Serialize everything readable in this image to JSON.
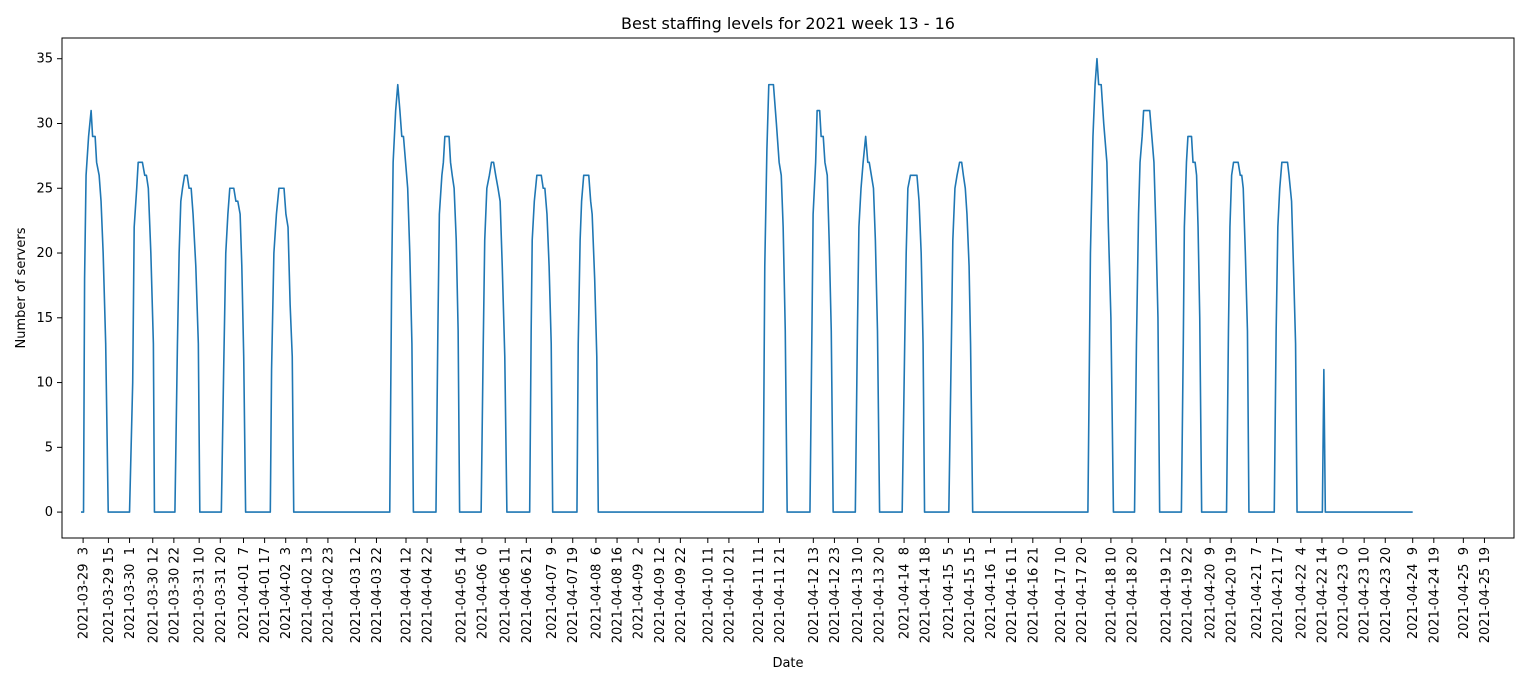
{
  "chart_data": {
    "type": "line",
    "title": "Best staffing levels for 2021 week 13 - 16",
    "xlabel": "Date",
    "ylabel": "Number of servers",
    "ylim": [
      -2,
      36.6
    ],
    "yticks": [
      0,
      5,
      10,
      15,
      20,
      25,
      30,
      35
    ],
    "grid": false,
    "line_color": "#1f77b4",
    "x_unit": "hour",
    "x_start": "2021-03-29 2",
    "x_end": "2021-04-25 23",
    "xlim_hours": [
      -9,
      679
    ],
    "xtick_labels": [
      "2021-03-29  3",
      "2021-03-29 15",
      "2021-03-30  1",
      "2021-03-30 12",
      "2021-03-30 22",
      "2021-03-31 10",
      "2021-03-31 20",
      "2021-04-01  7",
      "2021-04-01 17",
      "2021-04-02  3",
      "2021-04-02 13",
      "2021-04-02 23",
      "2021-04-03 12",
      "2021-04-03 22",
      "2021-04-04 12",
      "2021-04-04 22",
      "2021-04-05 14",
      "2021-04-06  0",
      "2021-04-06 11",
      "2021-04-06 21",
      "2021-04-07  9",
      "2021-04-07 19",
      "2021-04-08  6",
      "2021-04-08 16",
      "2021-04-09  2",
      "2021-04-09 12",
      "2021-04-09 22",
      "2021-04-10 11",
      "2021-04-10 21",
      "2021-04-11 11",
      "2021-04-11 21",
      "2021-04-12 13",
      "2021-04-12 23",
      "2021-04-13 10",
      "2021-04-13 20",
      "2021-04-14  8",
      "2021-04-14 18",
      "2021-04-15  5",
      "2021-04-15 15",
      "2021-04-16  1",
      "2021-04-16 11",
      "2021-04-16 21",
      "2021-04-17 10",
      "2021-04-17 20",
      "2021-04-18 10",
      "2021-04-18 20",
      "2021-04-19 12",
      "2021-04-19 22",
      "2021-04-20  9",
      "2021-04-20 19",
      "2021-04-21  7",
      "2021-04-21 17",
      "2021-04-22  4",
      "2021-04-22 14",
      "2021-04-23  0",
      "2021-04-23 10",
      "2021-04-23 20",
      "2021-04-24  9",
      "2021-04-24 19",
      "2021-04-25  9",
      "2021-04-25 19"
    ],
    "series": [
      {
        "name": "",
        "points": [
          [
            0,
            0
          ],
          [
            1.2,
            0
          ],
          [
            1.7,
            18
          ],
          [
            2.4,
            26
          ],
          [
            3.6,
            29
          ],
          [
            4.8,
            31
          ],
          [
            5.5,
            29
          ],
          [
            6.7,
            29
          ],
          [
            7.4,
            27
          ],
          [
            8.6,
            26
          ],
          [
            9.5,
            24
          ],
          [
            10.5,
            20
          ],
          [
            11.7,
            13
          ],
          [
            12.9,
            0
          ],
          [
            23,
            0
          ],
          [
            24.5,
            10
          ],
          [
            25.2,
            22
          ],
          [
            26.4,
            25
          ],
          [
            27.1,
            27
          ],
          [
            29.1,
            27
          ],
          [
            30.2,
            26
          ],
          [
            31,
            26
          ],
          [
            31.9,
            25
          ],
          [
            33.1,
            20
          ],
          [
            34.3,
            13
          ],
          [
            34.8,
            0
          ],
          [
            44.5,
            0
          ],
          [
            45.7,
            13
          ],
          [
            46.5,
            20
          ],
          [
            47.3,
            24
          ],
          [
            48.1,
            25
          ],
          [
            49.1,
            26
          ],
          [
            50.3,
            26
          ],
          [
            51.2,
            25
          ],
          [
            52.2,
            25
          ],
          [
            53.1,
            23
          ],
          [
            54.4,
            19
          ],
          [
            55.6,
            13
          ],
          [
            56.3,
            0
          ],
          [
            66.5,
            0
          ],
          [
            67.6,
            11
          ],
          [
            68.6,
            20
          ],
          [
            69.6,
            23
          ],
          [
            70.5,
            25
          ],
          [
            72.4,
            25
          ],
          [
            73.4,
            24
          ],
          [
            74.3,
            24
          ],
          [
            75.4,
            23
          ],
          [
            76.2,
            19
          ],
          [
            77.1,
            12
          ],
          [
            78,
            0
          ],
          [
            89.7,
            0
          ],
          [
            90.3,
            11
          ],
          [
            91.4,
            20
          ],
          [
            92.6,
            23
          ],
          [
            93.8,
            25
          ],
          [
            96.2,
            25
          ],
          [
            97.1,
            23
          ],
          [
            98.1,
            22
          ],
          [
            99.1,
            16
          ],
          [
            100.1,
            12
          ],
          [
            100.8,
            0
          ],
          [
            146.3,
            0
          ],
          [
            147.2,
            18
          ],
          [
            147.9,
            27
          ],
          [
            149.1,
            31
          ],
          [
            150.1,
            33
          ],
          [
            151.1,
            31
          ],
          [
            152,
            29
          ],
          [
            152.8,
            29
          ],
          [
            153.8,
            27
          ],
          [
            154.8,
            25
          ],
          [
            155.8,
            20
          ],
          [
            156.8,
            13
          ],
          [
            157.5,
            0
          ],
          [
            168.2,
            0
          ],
          [
            169.1,
            14
          ],
          [
            169.8,
            23
          ],
          [
            171,
            26
          ],
          [
            171.7,
            27
          ],
          [
            172.4,
            29
          ],
          [
            174.4,
            29
          ],
          [
            175.1,
            27
          ],
          [
            175.9,
            26
          ],
          [
            176.8,
            25
          ],
          [
            177.8,
            21
          ],
          [
            178.7,
            14
          ],
          [
            179.4,
            0
          ],
          [
            189.6,
            0
          ],
          [
            190.6,
            13
          ],
          [
            191.3,
            21
          ],
          [
            192.3,
            25
          ],
          [
            193.5,
            26
          ],
          [
            194.5,
            27
          ],
          [
            195.5,
            27
          ],
          [
            196.5,
            26
          ],
          [
            197.6,
            25
          ],
          [
            198.6,
            24
          ],
          [
            199.6,
            19
          ],
          [
            200.8,
            12
          ],
          [
            201.8,
            0
          ],
          [
            212.6,
            0
          ],
          [
            213.3,
            14
          ],
          [
            213.8,
            21
          ],
          [
            214.8,
            24
          ],
          [
            216,
            26
          ],
          [
            218.1,
            26
          ],
          [
            219,
            25
          ],
          [
            219.8,
            25
          ],
          [
            220.8,
            23
          ],
          [
            221.8,
            19
          ],
          [
            222.8,
            13
          ],
          [
            223.5,
            0
          ],
          [
            235,
            0
          ],
          [
            235.6,
            13
          ],
          [
            236.5,
            21
          ],
          [
            237.2,
            24
          ],
          [
            238.2,
            26
          ],
          [
            240.6,
            26
          ],
          [
            241.5,
            24
          ],
          [
            242.2,
            23
          ],
          [
            243.4,
            18
          ],
          [
            244.4,
            12
          ],
          [
            245.1,
            0
          ],
          [
            323.2,
            0
          ],
          [
            324,
            19
          ],
          [
            325,
            28
          ],
          [
            325.9,
            33
          ],
          [
            328.1,
            33
          ],
          [
            329.5,
            30
          ],
          [
            330.8,
            27
          ],
          [
            331.8,
            26
          ],
          [
            332.7,
            22
          ],
          [
            333.7,
            14
          ],
          [
            334.6,
            0
          ],
          [
            345.4,
            0
          ],
          [
            346.4,
            15
          ],
          [
            346.9,
            23
          ],
          [
            348.1,
            27
          ],
          [
            348.8,
            31
          ],
          [
            350,
            31
          ],
          [
            350.7,
            29
          ],
          [
            351.7,
            29
          ],
          [
            352.5,
            27
          ],
          [
            353.6,
            26
          ],
          [
            354.5,
            21
          ],
          [
            355.5,
            14
          ],
          [
            356.4,
            0
          ],
          [
            366.9,
            0
          ],
          [
            367.9,
            14
          ],
          [
            368.6,
            22
          ],
          [
            369.6,
            25
          ],
          [
            370.6,
            27
          ],
          [
            371.8,
            29
          ],
          [
            372.8,
            27
          ],
          [
            373.5,
            27
          ],
          [
            374.5,
            26
          ],
          [
            375.5,
            25
          ],
          [
            376.4,
            21
          ],
          [
            377.4,
            14
          ],
          [
            378.4,
            0
          ],
          [
            389.1,
            0
          ],
          [
            390.3,
            13
          ],
          [
            391,
            20
          ],
          [
            391.8,
            25
          ],
          [
            393,
            26
          ],
          [
            396.1,
            26
          ],
          [
            397.1,
            24
          ],
          [
            398.1,
            20
          ],
          [
            399,
            13
          ],
          [
            399.7,
            0
          ],
          [
            411.2,
            0
          ],
          [
            412.4,
            13
          ],
          [
            413.1,
            21
          ],
          [
            414.1,
            25
          ],
          [
            415.1,
            26
          ],
          [
            416.3,
            27
          ],
          [
            417.3,
            27
          ],
          [
            418.1,
            26
          ],
          [
            419,
            25
          ],
          [
            419.8,
            23
          ],
          [
            420.8,
            19
          ],
          [
            421.5,
            13
          ],
          [
            422.5,
            0
          ],
          [
            477.1,
            0
          ],
          [
            478.3,
            20
          ],
          [
            479.5,
            29
          ],
          [
            480.5,
            33
          ],
          [
            481.4,
            35
          ],
          [
            482.2,
            33
          ],
          [
            483.4,
            33
          ],
          [
            484.6,
            30
          ],
          [
            486.1,
            27
          ],
          [
            486.8,
            22
          ],
          [
            488,
            15
          ],
          [
            489.2,
            0
          ],
          [
            499.2,
            0
          ],
          [
            500.1,
            13
          ],
          [
            501.1,
            23
          ],
          [
            501.8,
            27
          ],
          [
            502.8,
            29
          ],
          [
            503.5,
            31
          ],
          [
            506.4,
            31
          ],
          [
            507.4,
            29
          ],
          [
            508.4,
            27
          ],
          [
            509.3,
            22
          ],
          [
            510.3,
            15
          ],
          [
            511.1,
            0
          ],
          [
            521.4,
            0
          ],
          [
            522.3,
            13
          ],
          [
            522.8,
            22
          ],
          [
            523.8,
            27
          ],
          [
            524.5,
            29
          ],
          [
            526.2,
            29
          ],
          [
            526.9,
            27
          ],
          [
            527.9,
            27
          ],
          [
            528.6,
            26
          ],
          [
            529.3,
            22
          ],
          [
            530.1,
            15
          ],
          [
            531,
            0
          ],
          [
            542.8,
            0
          ],
          [
            543.7,
            14
          ],
          [
            544.4,
            22
          ],
          [
            545.2,
            26
          ],
          [
            546.1,
            27
          ],
          [
            548.3,
            27
          ],
          [
            549.3,
            26
          ],
          [
            550,
            26
          ],
          [
            550.7,
            25
          ],
          [
            551.7,
            20
          ],
          [
            552.7,
            14
          ],
          [
            553.4,
            0
          ],
          [
            565.4,
            0
          ],
          [
            566.3,
            14
          ],
          [
            567.1,
            22
          ],
          [
            568,
            25
          ],
          [
            569,
            27
          ],
          [
            571.7,
            27
          ],
          [
            572.4,
            26
          ],
          [
            573.6,
            24
          ],
          [
            574.5,
            19
          ],
          [
            575.5,
            13
          ],
          [
            576.2,
            0
          ],
          [
            588.2,
            0
          ],
          [
            588.9,
            11
          ],
          [
            589.6,
            0
          ],
          [
            631,
            0
          ]
        ]
      }
    ]
  }
}
